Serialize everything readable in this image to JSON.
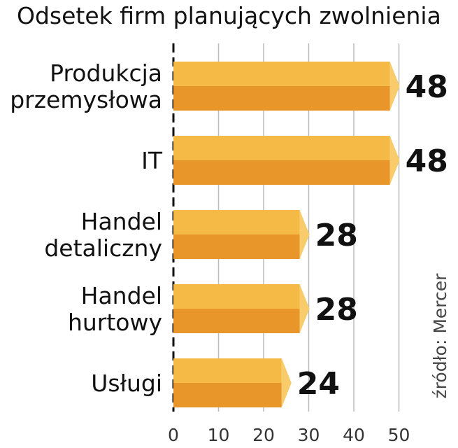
{
  "chart_data": {
    "type": "bar",
    "orientation": "horizontal",
    "title": "Odsetek firm planujących zwolnienia",
    "categories": [
      [
        "Produkcja",
        "przemysłowa"
      ],
      [
        "IT"
      ],
      [
        "Handel",
        "detaliczny"
      ],
      [
        "Handel",
        "hurtowy"
      ],
      [
        "Usługi"
      ]
    ],
    "values": [
      48,
      48,
      28,
      28,
      24
    ],
    "xlim": [
      0,
      50
    ],
    "xticks": [
      0,
      10,
      20,
      30,
      40,
      50
    ],
    "grid": true,
    "source": "źródło: Mercer",
    "colors": {
      "bar_top": "#F5B945",
      "bar_bottom": "#E8952A",
      "bar_end": "#F8CC6A",
      "grid": "#BBBBBB",
      "axis": "#111111"
    }
  }
}
